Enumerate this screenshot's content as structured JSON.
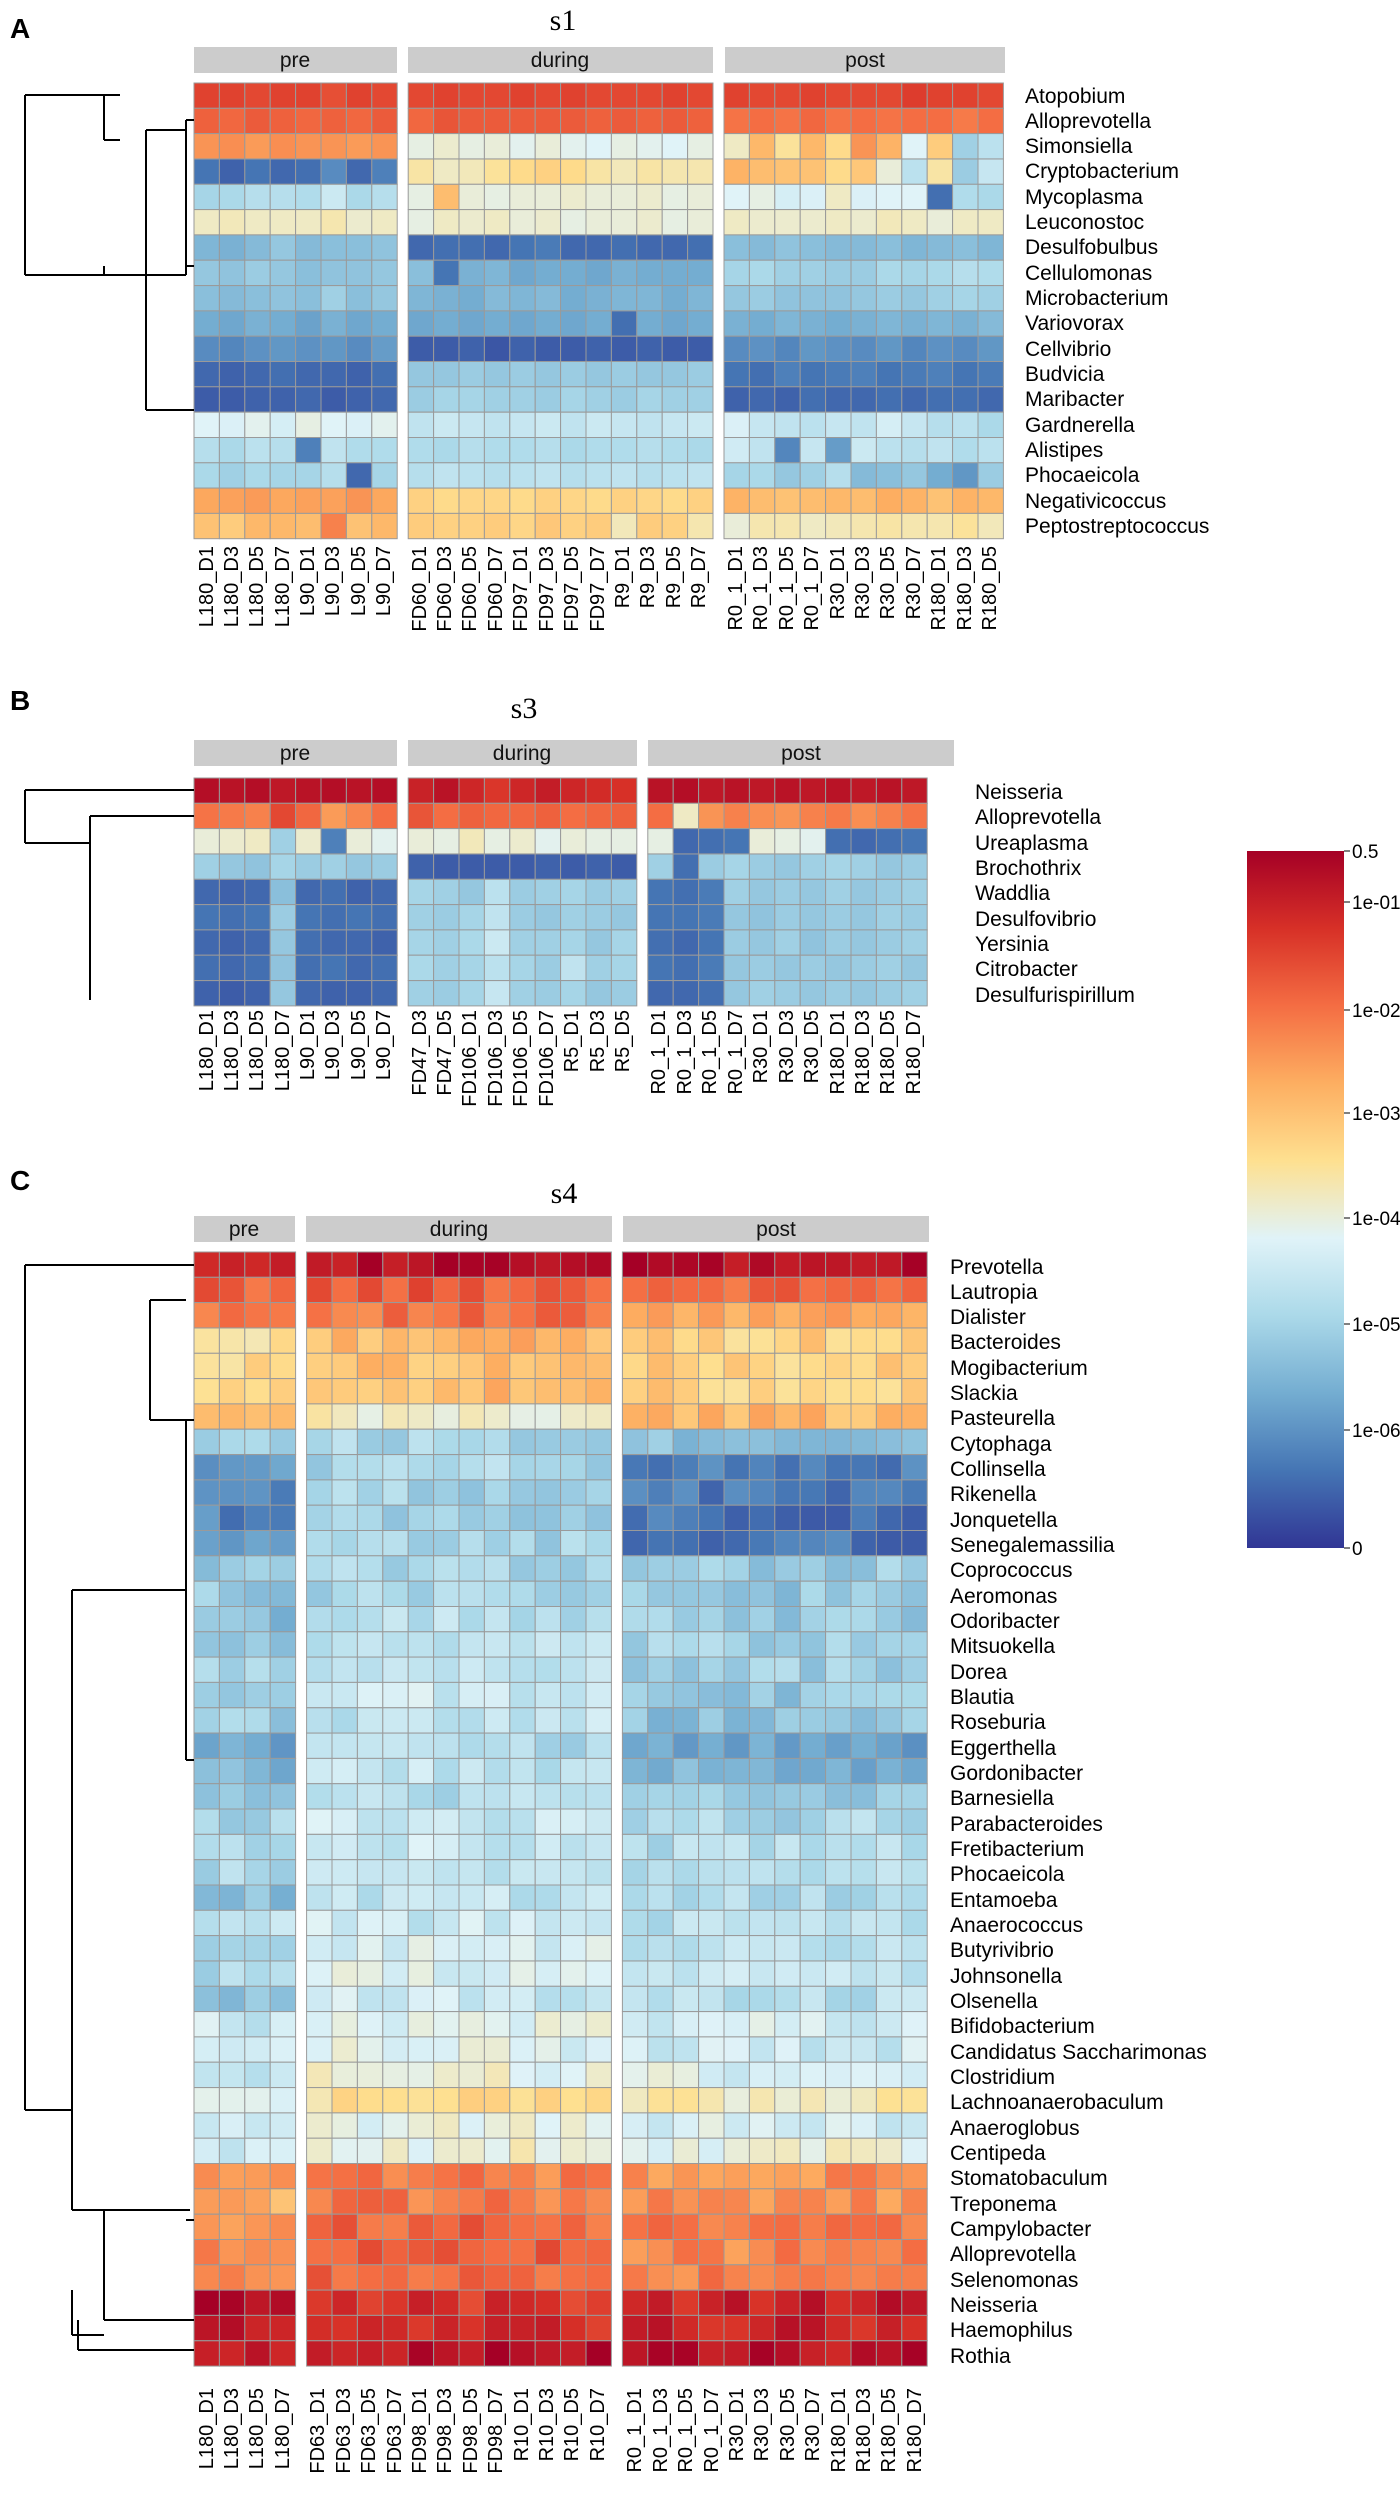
{
  "chart_data": [
    {
      "type": "heatmap",
      "panel": "A",
      "title": "s1",
      "groups": [
        {
          "name": "pre",
          "columns": [
            "L180_D1",
            "L180_D3",
            "L180_D5",
            "L180_D7",
            "L90_D1",
            "L90_D3",
            "L90_D5",
            "L90_D7"
          ]
        },
        {
          "name": "during",
          "columns": [
            "FD60_D1",
            "FD60_D3",
            "FD60_D5",
            "FD60_D7",
            "FD97_D1",
            "FD97_D3",
            "FD97_D5",
            "FD97_D7",
            "R9_D1",
            "R9_D3",
            "R9_D5",
            "R9_D7"
          ]
        },
        {
          "name": "post",
          "columns": [
            "R0_1_D1",
            "R0_1_D3",
            "R0_1_D5",
            "R0_1_D7",
            "R30_D1",
            "R30_D3",
            "R30_D5",
            "R30_D7",
            "R180_D1",
            "R180_D3",
            "R180_D5"
          ]
        }
      ],
      "rows": [
        "Atopobium",
        "Alloprevotella",
        "Simonsiella",
        "Cryptobacterium",
        "Mycoplasma",
        "Leuconostoc",
        "Desulfobulbus",
        "Cellulomonas",
        "Microbacterium",
        "Variovorax",
        "Cellvibrio",
        "Budvicia",
        "Maribacter",
        "Gardnerella",
        "Alistipes",
        "Phocaeicola",
        "Negativicoccus",
        "Peptostreptococcus"
      ],
      "row_levels": [
        [
          7.7,
          7.7,
          7.6,
          7.7,
          7.7,
          7.5,
          7.7,
          7.6,
          7.6,
          7.7,
          7.6,
          7.6,
          7.7,
          7.6,
          7.7,
          7.6,
          7.6,
          7.6,
          7.7,
          7.6,
          7.7,
          7.6,
          7.6,
          7.7,
          7.6,
          7.6,
          7.6,
          7.8,
          7.7,
          7.7,
          7.6
        ],
        [
          7.2,
          7.1,
          7.3,
          7.2,
          7.1,
          7.2,
          7.1,
          7.3,
          7.1,
          7.4,
          7.3,
          7.3,
          7.3,
          7.3,
          7.3,
          7.2,
          7.3,
          7.2,
          7.3,
          7.2,
          6.9,
          7.0,
          6.9,
          7.1,
          6.9,
          7.0,
          6.9,
          7.0,
          7.0,
          6.8,
          7.0
        ],
        [
          6.4,
          6.5,
          6.3,
          6.5,
          6.4,
          6.4,
          6.3,
          6.4,
          4.2,
          4.4,
          4.2,
          4.3,
          4.1,
          4.3,
          4.1,
          4.0,
          4.2,
          4.1,
          4.0,
          4.2,
          4.5,
          5.8,
          4.9,
          5.8,
          5.1,
          6.4,
          5.9,
          4.0,
          5.4,
          2.8,
          3.3
        ],
        [
          1.0,
          0.7,
          1.0,
          0.8,
          0.9,
          1.4,
          0.8,
          1.2,
          4.8,
          4.5,
          4.6,
          4.9,
          5.1,
          5.3,
          5.1,
          4.8,
          4.6,
          4.8,
          4.7,
          4.7,
          5.9,
          5.7,
          5.6,
          5.6,
          5.1,
          5.5,
          4.3,
          3.3,
          4.8,
          2.7,
          3.5
        ],
        [
          2.9,
          3.0,
          3.2,
          3.2,
          3.1,
          3.6,
          3.0,
          3.2,
          4.2,
          5.7,
          4.3,
          4.2,
          4.3,
          4.3,
          4.4,
          4.3,
          4.3,
          4.4,
          4.2,
          4.3,
          4.0,
          4.2,
          3.8,
          3.9,
          4.5,
          3.9,
          4.0,
          4.0,
          0.9,
          3.1,
          3.0
        ],
        [
          4.5,
          4.6,
          4.5,
          4.5,
          4.5,
          4.7,
          4.4,
          4.5,
          4.2,
          4.5,
          4.4,
          4.5,
          4.3,
          4.4,
          4.2,
          4.3,
          4.3,
          4.4,
          4.2,
          4.3,
          4.5,
          4.4,
          4.4,
          4.4,
          4.5,
          4.4,
          4.6,
          4.5,
          4.3,
          4.5,
          4.5
        ],
        [
          2.2,
          2.1,
          2.3,
          2.6,
          2.3,
          2.4,
          2.4,
          2.5,
          0.8,
          0.9,
          0.9,
          0.8,
          1.0,
          1.1,
          0.8,
          0.8,
          0.9,
          0.8,
          0.8,
          0.9,
          2.4,
          2.3,
          2.5,
          2.4,
          2.3,
          2.3,
          2.4,
          2.2,
          2.3,
          2.4,
          2.2
        ],
        [
          2.6,
          2.5,
          2.7,
          2.6,
          2.4,
          2.5,
          2.5,
          2.6,
          2.4,
          1.0,
          2.1,
          2.2,
          1.9,
          2.0,
          2.0,
          1.9,
          2.1,
          2.0,
          2.0,
          2.0,
          2.9,
          3.0,
          2.8,
          2.8,
          2.7,
          2.7,
          3.0,
          2.9,
          3.0,
          3.2,
          3.1
        ],
        [
          2.4,
          2.3,
          2.4,
          2.5,
          2.4,
          2.8,
          2.4,
          2.6,
          2.2,
          2.1,
          2.0,
          2.3,
          2.2,
          2.3,
          2.0,
          2.1,
          2.2,
          2.2,
          2.0,
          2.2,
          2.6,
          2.7,
          2.5,
          2.5,
          2.5,
          2.6,
          2.7,
          2.6,
          2.8,
          2.9,
          2.8
        ],
        [
          2.0,
          1.9,
          2.1,
          2.0,
          1.8,
          2.1,
          1.9,
          2.0,
          1.9,
          2.0,
          1.9,
          2.0,
          1.9,
          2.0,
          1.9,
          2.0,
          0.9,
          2.0,
          1.9,
          2.0,
          2.1,
          2.0,
          2.2,
          2.1,
          2.0,
          2.1,
          2.2,
          2.1,
          2.2,
          2.1,
          2.3
        ],
        [
          1.4,
          1.3,
          1.5,
          1.6,
          1.5,
          1.6,
          1.4,
          1.7,
          0.6,
          0.6,
          0.7,
          0.5,
          0.7,
          0.6,
          0.6,
          0.7,
          0.6,
          0.7,
          0.6,
          0.6,
          1.4,
          1.5,
          1.3,
          1.6,
          1.5,
          1.4,
          1.6,
          1.3,
          1.5,
          1.4,
          1.6
        ],
        [
          0.8,
          0.7,
          0.8,
          0.9,
          0.8,
          0.8,
          0.7,
          0.9,
          2.6,
          2.6,
          2.7,
          2.6,
          2.7,
          2.6,
          2.7,
          2.6,
          2.7,
          2.6,
          2.6,
          2.7,
          1.0,
          0.9,
          1.2,
          1.0,
          1.1,
          1.2,
          1.0,
          1.1,
          1.2,
          1.0,
          1.1
        ],
        [
          0.6,
          0.6,
          0.7,
          0.7,
          0.8,
          0.6,
          0.7,
          0.8,
          2.7,
          2.9,
          2.9,
          2.8,
          2.8,
          2.7,
          2.9,
          2.8,
          2.7,
          2.9,
          2.8,
          2.8,
          0.7,
          0.8,
          0.7,
          0.9,
          0.8,
          0.8,
          0.9,
          0.8,
          0.9,
          0.9,
          0.8
        ],
        [
          4.0,
          3.9,
          4.1,
          3.8,
          4.2,
          4.0,
          3.9,
          4.1,
          3.4,
          3.6,
          3.5,
          3.4,
          3.5,
          3.6,
          3.4,
          3.6,
          3.5,
          3.4,
          3.5,
          3.6,
          3.9,
          3.5,
          3.4,
          3.3,
          3.5,
          3.4,
          3.8,
          3.5,
          3.2,
          3.3,
          3.0
        ],
        [
          3.2,
          3.0,
          3.3,
          3.2,
          1.2,
          3.4,
          3.1,
          3.1,
          3.1,
          3.0,
          3.2,
          3.1,
          3.1,
          3.2,
          3.0,
          3.1,
          3.1,
          3.2,
          3.1,
          3.0,
          3.7,
          3.4,
          1.3,
          3.5,
          1.7,
          3.6,
          3.3,
          3.2,
          3.4,
          3.1,
          3.3
        ],
        [
          3.0,
          2.8,
          3.0,
          2.9,
          2.9,
          3.2,
          0.8,
          2.9,
          3.2,
          3.4,
          3.3,
          3.2,
          3.3,
          3.4,
          3.2,
          3.3,
          3.4,
          3.2,
          3.3,
          3.4,
          2.9,
          3.0,
          2.6,
          2.8,
          3.2,
          2.3,
          2.4,
          2.6,
          2.0,
          1.6,
          2.7
        ],
        [
          6.1,
          6.2,
          6.3,
          6.1,
          6.2,
          6.2,
          6.4,
          6.1,
          5.3,
          5.1,
          5.2,
          5.2,
          5.1,
          5.3,
          5.2,
          5.1,
          5.3,
          5.2,
          5.1,
          5.3,
          5.9,
          5.7,
          5.6,
          5.7,
          5.8,
          5.7,
          6.0,
          5.9,
          5.6,
          5.9,
          5.8
        ],
        [
          5.6,
          5.4,
          5.8,
          5.8,
          5.7,
          6.7,
          5.6,
          5.8,
          5.4,
          5.3,
          5.3,
          5.4,
          5.2,
          5.5,
          5.3,
          5.4,
          4.6,
          5.4,
          5.3,
          4.7,
          4.3,
          4.7,
          4.7,
          4.5,
          4.6,
          4.7,
          4.8,
          4.7,
          4.7,
          4.9,
          4.6
        ]
      ]
    },
    {
      "type": "heatmap",
      "panel": "B",
      "title": "s3",
      "groups": [
        {
          "name": "pre",
          "columns": [
            "L180_D1",
            "L180_D3",
            "L180_D5",
            "L180_D7",
            "L90_D1",
            "L90_D3",
            "L90_D5",
            "L90_D7"
          ]
        },
        {
          "name": "during",
          "columns": [
            "FD47_D3",
            "FD47_D5",
            "FD106_D1",
            "FD106_D3",
            "FD106_D5",
            "FD106_D7",
            "R5_D1",
            "R5_D3",
            "R5_D5"
          ]
        },
        {
          "name": "post",
          "columns": [
            "R0_1_D1",
            "R0_1_D3",
            "R0_1_D5",
            "R0_1_D7",
            "R30_D1",
            "R30_D3",
            "R30_D5",
            "R180_D1",
            "R180_D3",
            "R180_D5",
            "R180_D7"
          ]
        }
      ],
      "rows": [
        "Neisseria",
        "Alloprevotella",
        "Ureaplasma",
        "Brochothrix",
        "Waddlia",
        "Desulfovibrio",
        "Yersinia",
        "Citrobacter",
        "Desulfurispirillum"
      ],
      "row_levels": [
        [
          8.7,
          8.6,
          8.7,
          8.5,
          8.6,
          8.7,
          8.6,
          8.7,
          8.3,
          8.6,
          8.2,
          7.9,
          8.2,
          8.4,
          8.2,
          8.1,
          8.0,
          8.6,
          8.7,
          8.5,
          8.6,
          8.5,
          8.6,
          8.5,
          8.6,
          8.5,
          8.6,
          8.5
        ],
        [
          6.9,
          6.8,
          6.7,
          7.6,
          7.1,
          6.3,
          6.6,
          7.0,
          7.4,
          7.0,
          7.2,
          7.1,
          7.1,
          7.2,
          7.0,
          7.1,
          7.2,
          7.0,
          4.5,
          6.4,
          6.7,
          6.5,
          6.4,
          6.7,
          6.8,
          6.5,
          6.7,
          6.9
        ],
        [
          4.3,
          4.4,
          4.5,
          2.8,
          4.4,
          1.2,
          4.3,
          4.1,
          4.3,
          4.2,
          4.6,
          4.2,
          4.4,
          4.1,
          4.3,
          4.2,
          4.2,
          4.2,
          0.8,
          0.9,
          1.0,
          4.3,
          4.2,
          4.1,
          0.9,
          0.8,
          0.9,
          1.0
        ],
        [
          2.8,
          2.6,
          2.5,
          2.9,
          2.7,
          2.8,
          2.6,
          2.7,
          0.7,
          0.6,
          0.6,
          0.6,
          0.6,
          0.7,
          0.6,
          0.7,
          0.6,
          2.8,
          0.9,
          2.7,
          2.9,
          2.7,
          2.6,
          2.8,
          2.9,
          2.8,
          2.6,
          2.7
        ],
        [
          0.8,
          0.7,
          0.8,
          2.4,
          0.8,
          0.9,
          0.7,
          0.8,
          2.9,
          2.8,
          2.6,
          3.3,
          2.7,
          2.8,
          2.9,
          2.7,
          2.8,
          1.0,
          0.9,
          1.1,
          2.8,
          2.6,
          2.7,
          2.6,
          2.8,
          2.6,
          2.7,
          2.8
        ],
        [
          1.0,
          0.9,
          1.0,
          2.7,
          1.0,
          0.9,
          1.0,
          0.9,
          2.8,
          2.7,
          2.9,
          3.4,
          2.7,
          2.6,
          2.8,
          2.7,
          2.6,
          1.0,
          1.0,
          1.1,
          2.6,
          2.5,
          2.7,
          2.6,
          2.7,
          2.6,
          2.8,
          2.7
        ],
        [
          0.8,
          0.7,
          0.8,
          2.6,
          0.9,
          0.8,
          0.8,
          0.7,
          2.9,
          2.8,
          3.0,
          3.6,
          2.8,
          2.8,
          2.9,
          2.6,
          2.9,
          0.9,
          0.8,
          1.0,
          2.7,
          2.6,
          2.8,
          2.5,
          2.7,
          2.6,
          2.7,
          2.8
        ],
        [
          0.9,
          0.8,
          0.9,
          2.5,
          0.9,
          1.0,
          0.8,
          0.9,
          3.0,
          2.8,
          2.9,
          3.3,
          2.9,
          2.7,
          3.4,
          2.8,
          2.9,
          1.0,
          0.9,
          1.1,
          2.6,
          2.7,
          2.6,
          2.7,
          2.6,
          2.7,
          2.8,
          2.6
        ],
        [
          0.7,
          0.6,
          0.7,
          2.6,
          0.8,
          0.7,
          0.7,
          0.8,
          2.8,
          2.7,
          2.9,
          3.5,
          2.8,
          2.7,
          2.9,
          2.6,
          2.7,
          0.8,
          0.8,
          0.9,
          2.6,
          2.8,
          2.7,
          2.6,
          2.7,
          2.6,
          2.7,
          2.8
        ]
      ]
    },
    {
      "type": "heatmap",
      "panel": "C",
      "title": "s4",
      "groups": [
        {
          "name": "pre",
          "columns": [
            "L180_D1",
            "L180_D3",
            "L180_D5",
            "L180_D7"
          ]
        },
        {
          "name": "during",
          "columns": [
            "FD63_D1",
            "FD63_D3",
            "FD63_D5",
            "FD63_D7",
            "FD98_D1",
            "FD98_D3",
            "FD98_D5",
            "FD98_D7",
            "R10_D1",
            "R10_D3",
            "R10_D5",
            "R10_D7"
          ]
        },
        {
          "name": "post",
          "columns": [
            "R0_1_D1",
            "R0_1_D3",
            "R0_1_D5",
            "R0_1_D7",
            "R30_D1",
            "R30_D3",
            "R30_D5",
            "R30_D7",
            "R180_D1",
            "R180_D3",
            "R180_D5",
            "R180_D7"
          ]
        }
      ],
      "rows": [
        "Prevotella",
        "Lautropia",
        "Dialister",
        "Bacteroides",
        "Mogibacterium",
        "Slackia",
        "Pasteurella",
        "Cytophaga",
        "Collinsella",
        "Rikenella",
        "Jonquetella",
        "Senegalemassilia",
        "Coprococcus",
        "Aeromonas",
        "Odoribacter",
        "Mitsuokella",
        "Dorea",
        "Blautia",
        "Roseburia",
        "Eggerthella",
        "Gordonibacter",
        "Barnesiella",
        "Parabacteroides",
        "Fretibacterium",
        "Phocaeicola",
        "Entamoeba",
        "Anaerococcus",
        "Butyrivibrio",
        "Johnsonella",
        "Olsenella",
        "Bifidobacterium",
        "Candidatus Saccharimonas",
        "Clostridium",
        "Lachnoanaerobaculum",
        "Anaeroglobus",
        "Centipeda",
        "Stomatobaculum",
        "Treponema",
        "Campylobacter",
        "Alloprevotella",
        "Selenomonas",
        "Neisseria",
        "Haemophilus",
        "Rothia"
      ],
      "row_base_pre": [
        8.6,
        7.2,
        7.0,
        4.8,
        5.0,
        5.0,
        5.6,
        3.0,
        1.6,
        1.5,
        1.3,
        1.5,
        2.6,
        2.6,
        2.4,
        2.6,
        2.8,
        2.8,
        2.7,
        2.0,
        2.2,
        2.4,
        3.0,
        3.2,
        3.0,
        2.4,
        3.2,
        3.2,
        3.0,
        2.5,
        3.6,
        3.6,
        3.6,
        4.2,
        3.8,
        3.7,
        6.1,
        5.9,
        6.4,
        6.6,
        6.5,
        8.6,
        8.6,
        8.6
      ],
      "row_base_during": [
        8.7,
        7.3,
        6.9,
        5.8,
        5.7,
        5.7,
        4.4,
        3.0,
        3.0,
        2.9,
        2.8,
        2.9,
        3.0,
        3.0,
        3.2,
        3.2,
        3.4,
        3.6,
        3.4,
        3.1,
        3.4,
        3.2,
        3.6,
        3.6,
        3.4,
        3.4,
        3.6,
        3.8,
        3.9,
        3.6,
        4.1,
        4.0,
        4.2,
        5.1,
        4.1,
        4.3,
        6.7,
        6.8,
        7.1,
        7.2,
        7.2,
        7.9,
        8.0,
        8.6
      ],
      "row_base_post": [
        8.6,
        7.1,
        6.0,
        5.3,
        5.3,
        5.3,
        5.8,
        2.5,
        1.2,
        1.1,
        1.0,
        1.0,
        2.7,
        2.6,
        2.7,
        2.8,
        2.8,
        2.6,
        2.5,
        1.9,
        2.1,
        2.6,
        3.0,
        3.1,
        3.2,
        3.1,
        3.3,
        3.3,
        3.5,
        3.2,
        3.8,
        3.6,
        3.9,
        4.6,
        3.8,
        4.2,
        6.5,
        6.4,
        6.8,
        6.6,
        6.7,
        8.3,
        8.3,
        8.6
      ]
    }
  ],
  "panel_labels": [
    "A",
    "B",
    "C"
  ],
  "legend": {
    "tick_labels": [
      "0.5",
      "1e-01",
      "1e-02",
      "1e-03",
      "1e-04",
      "1e-05",
      "1e-06",
      "0"
    ],
    "colors": [
      "#313695",
      "#4575b4",
      "#74add1",
      "#abd9e9",
      "#e0f3f8",
      "#fee090",
      "#fdae61",
      "#f46d43",
      "#d73027",
      "#a50026"
    ]
  }
}
